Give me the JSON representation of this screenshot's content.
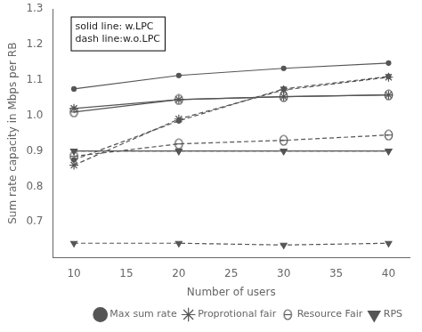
{
  "chart_data": {
    "type": "line",
    "x": [
      10,
      20,
      30,
      40
    ],
    "series": [
      {
        "values": [
          1.075,
          1.113,
          1.133,
          1.148
        ],
        "line_style": "solid",
        "marker": "dot"
      },
      {
        "values": [
          1.02,
          1.045,
          1.053,
          1.058
        ],
        "line_style": "solid",
        "marker": "star"
      },
      {
        "values": [
          1.01,
          1.045,
          1.053,
          1.058
        ],
        "line_style": "solid",
        "marker": "theta"
      },
      {
        "values": [
          0.9,
          0.9,
          0.9,
          0.9
        ],
        "line_style": "solid",
        "marker": "triangle_down"
      },
      {
        "name": "Max sum rate",
        "values": [
          0.875,
          0.985,
          1.075,
          1.11
        ],
        "line_style": "dashed",
        "marker": "dot"
      },
      {
        "name": "Proprotional fair",
        "values": [
          0.86,
          0.99,
          1.072,
          1.108
        ],
        "line_style": "dashed",
        "marker": "star"
      },
      {
        "name": "Resource Fair",
        "values": [
          0.885,
          0.92,
          0.93,
          0.945
        ],
        "line_style": "dashed",
        "marker": "theta"
      },
      {
        "name": "RPS",
        "values": [
          0.9,
          0.9,
          0.9,
          0.9
        ],
        "line_style": "dashed",
        "marker": "triangle_down"
      },
      {
        "values": [
          0.64,
          0.64,
          0.635,
          0.64
        ],
        "line_style": "dashed",
        "marker": "triangle_down"
      }
    ],
    "color": "#555555",
    "xlabel": "Number of users",
    "ylabel": "Sum rate capacity in Mbps per RB",
    "xlim": [
      8,
      42
    ],
    "ylim": [
      0.6,
      1.3
    ],
    "xticks": [
      10,
      15,
      20,
      25,
      30,
      35,
      40
    ],
    "yticks": [
      0.7,
      0.8,
      0.9,
      {
        "value": 1.0,
        "label": "1.0"
      },
      1.1,
      1.2,
      1.3
    ],
    "annotations": [
      "solid line: w.LPC",
      "dash line:w.o.LPC"
    ],
    "legend": "lower right",
    "grid": false
  }
}
